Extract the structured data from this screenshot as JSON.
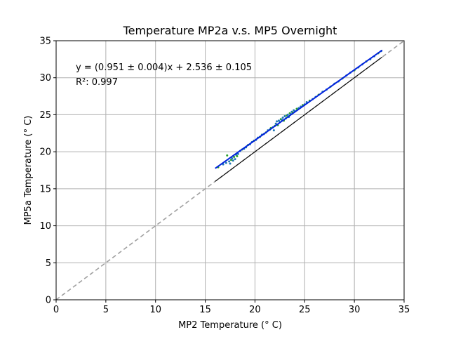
{
  "chart_data": {
    "type": "scatter",
    "title": "Temperature MP2a v.s. MP5 Overnight",
    "xlabel": "MP2 Temperature (° C)",
    "ylabel": "MP5a Temperature (° C)",
    "xlim": [
      0,
      35
    ],
    "ylim": [
      0,
      35
    ],
    "xticks": [
      0,
      5,
      10,
      15,
      20,
      25,
      30,
      35
    ],
    "yticks": [
      0,
      5,
      10,
      15,
      20,
      25,
      30,
      35
    ],
    "grid": true,
    "annotations": {
      "equation": "y = (0.951 ± 0.004)x + 2.536 ± 0.105",
      "r_squared": "R²: 0.997"
    },
    "fit": {
      "slope": 0.951,
      "intercept": 2.536,
      "x_range": [
        16,
        32.8
      ]
    },
    "reference_line": {
      "slope": 1,
      "intercept": 0
    },
    "lower_line": {
      "slope": 1,
      "intercept": 0,
      "x_range": [
        16,
        32.8
      ]
    },
    "colors": {
      "fit": "#0022dd",
      "reference": "#a0a0a0",
      "points_a": "#1f77b4",
      "points_b": "#2ca02c",
      "lower": "#000000",
      "grid": "#b0b0b0"
    },
    "points": [
      [
        16.3,
        17.9
      ],
      [
        16.8,
        18.3
      ],
      [
        17.1,
        18.5
      ],
      [
        17.2,
        19.5
      ],
      [
        17.4,
        18.7
      ],
      [
        17.5,
        18.4
      ],
      [
        17.6,
        18.9
      ],
      [
        17.7,
        19.1
      ],
      [
        17.8,
        18.8
      ],
      [
        17.9,
        19.3
      ],
      [
        18.0,
        19.0
      ],
      [
        18.1,
        19.6
      ],
      [
        18.2,
        19.4
      ],
      [
        18.3,
        19.7
      ],
      [
        18.5,
        20.1
      ],
      [
        18.7,
        20.3
      ],
      [
        18.9,
        20.4
      ],
      [
        19.1,
        20.6
      ],
      [
        19.3,
        20.9
      ],
      [
        19.5,
        21.0
      ],
      [
        19.7,
        21.3
      ],
      [
        19.9,
        21.5
      ],
      [
        20.1,
        21.6
      ],
      [
        20.3,
        21.9
      ],
      [
        20.5,
        22.0
      ],
      [
        20.7,
        22.3
      ],
      [
        20.9,
        22.4
      ],
      [
        21.1,
        22.6
      ],
      [
        21.3,
        22.9
      ],
      [
        21.5,
        23.0
      ],
      [
        21.6,
        23.2
      ],
      [
        21.8,
        23.3
      ],
      [
        21.9,
        22.9
      ],
      [
        22.0,
        23.5
      ],
      [
        22.1,
        23.8
      ],
      [
        22.2,
        24.1
      ],
      [
        22.3,
        23.6
      ],
      [
        22.4,
        24.2
      ],
      [
        22.5,
        24.0
      ],
      [
        22.6,
        24.4
      ],
      [
        22.7,
        24.3
      ],
      [
        22.8,
        24.6
      ],
      [
        22.9,
        24.2
      ],
      [
        23.0,
        24.8
      ],
      [
        23.1,
        24.5
      ],
      [
        23.2,
        24.9
      ],
      [
        23.3,
        25.0
      ],
      [
        23.4,
        24.7
      ],
      [
        23.5,
        25.2
      ],
      [
        23.6,
        25.1
      ],
      [
        23.7,
        25.4
      ],
      [
        23.8,
        25.3
      ],
      [
        23.9,
        25.6
      ],
      [
        24.0,
        25.5
      ],
      [
        24.2,
        25.8
      ],
      [
        24.4,
        25.9
      ],
      [
        24.6,
        26.1
      ],
      [
        24.8,
        26.3
      ],
      [
        25.0,
        26.4
      ],
      [
        25.2,
        26.7
      ],
      [
        25.5,
        26.9
      ],
      [
        25.8,
        27.1
      ],
      [
        26.1,
        27.4
      ],
      [
        26.4,
        27.7
      ],
      [
        26.8,
        28.1
      ],
      [
        27.2,
        28.4
      ],
      [
        27.6,
        28.8
      ],
      [
        28.0,
        29.2
      ],
      [
        28.4,
        29.5
      ],
      [
        28.8,
        29.9
      ],
      [
        29.2,
        30.3
      ],
      [
        29.6,
        30.7
      ],
      [
        30.0,
        31.0
      ],
      [
        30.4,
        31.4
      ],
      [
        30.8,
        31.8
      ],
      [
        31.2,
        32.2
      ],
      [
        31.6,
        32.5
      ],
      [
        32.0,
        32.9
      ],
      [
        32.4,
        33.3
      ],
      [
        32.7,
        33.6
      ]
    ]
  }
}
